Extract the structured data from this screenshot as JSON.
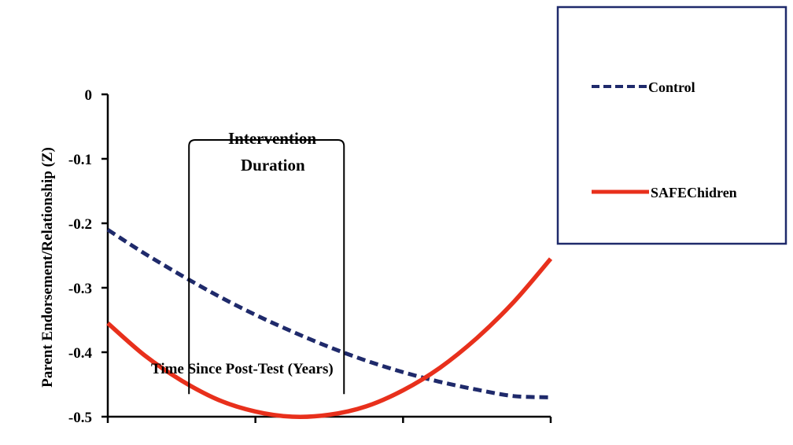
{
  "chart_data": {
    "type": "line",
    "title": "",
    "xlabel": "Time Since Post-Test (Years)",
    "ylabel": "Parent Endorsement/Relationship (Z)",
    "ylim": [
      -0.5,
      0
    ],
    "xlim": [
      -1,
      2
    ],
    "yticks": [
      {
        "value": 0,
        "label": "0"
      },
      {
        "value": -0.1,
        "label": "-0.1"
      },
      {
        "value": -0.2,
        "label": "-0.2"
      },
      {
        "value": -0.3,
        "label": "-0.3"
      },
      {
        "value": -0.4,
        "label": "-0.4"
      },
      {
        "value": -0.5,
        "label": "-0.5"
      }
    ],
    "xticks": [
      -1,
      0,
      1,
      2
    ],
    "legend_position": "top-right",
    "annotation": {
      "lines": [
        "Intervention",
        "Duration"
      ],
      "x_range": [
        -0.45,
        0.6
      ]
    },
    "series": [
      {
        "name": "Control",
        "color": "#1f2a6b",
        "style": "dashed",
        "x": [
          -1,
          -0.75,
          -0.5,
          -0.25,
          0,
          0.25,
          0.5,
          0.75,
          1,
          1.25,
          1.5,
          1.75,
          2
        ],
        "y": [
          -0.21,
          -0.247,
          -0.281,
          -0.313,
          -0.342,
          -0.368,
          -0.392,
          -0.413,
          -0.431,
          -0.446,
          -0.458,
          -0.468,
          -0.47
        ]
      },
      {
        "name": "SAFEChidren",
        "color": "#e8301c",
        "style": "solid",
        "x": [
          -1,
          -0.75,
          -0.5,
          -0.25,
          0,
          0.25,
          0.5,
          0.75,
          1,
          1.25,
          1.5,
          1.75,
          2
        ],
        "y": [
          -0.355,
          -0.405,
          -0.444,
          -0.474,
          -0.492,
          -0.5,
          -0.497,
          -0.484,
          -0.459,
          -0.424,
          -0.378,
          -0.322,
          -0.255
        ]
      }
    ]
  }
}
